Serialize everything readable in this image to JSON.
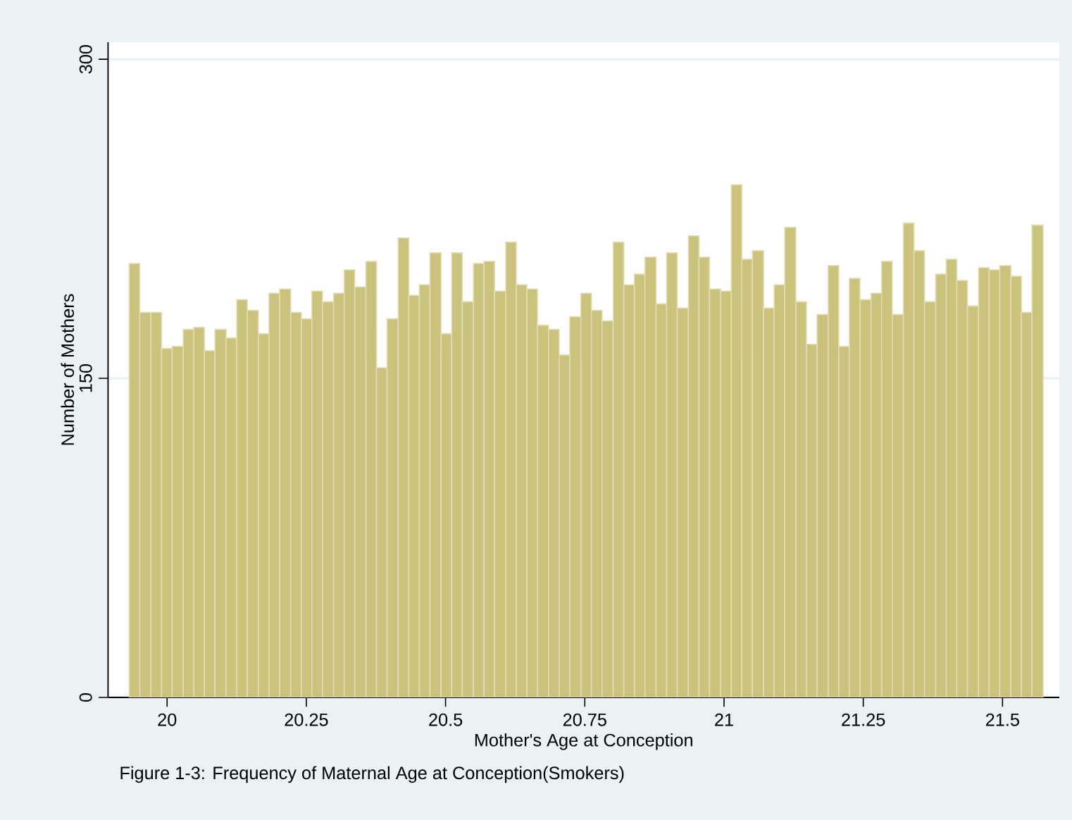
{
  "chart_data": {
    "type": "histogram",
    "xlabel": "Mother's Age at Conception",
    "ylabel": "Number of Mothers",
    "annotations": [
      "Figure 1-3: Frequency of Maternal Age at Conception(Smokers)"
    ],
    "bins": [
      19.932,
      19.951,
      19.971,
      19.99,
      20.009,
      20.029,
      20.048,
      20.067,
      20.086,
      20.106,
      20.125,
      20.144,
      20.164,
      20.183,
      20.202,
      20.222,
      20.241,
      20.26,
      20.279,
      20.299,
      20.318,
      20.337,
      20.357,
      20.376,
      20.395,
      20.415,
      20.434,
      20.453,
      20.472,
      20.492,
      20.511,
      20.53,
      20.55,
      20.569,
      20.588,
      20.608,
      20.627,
      20.646,
      20.665,
      20.685,
      20.704,
      20.723,
      20.743,
      20.762,
      20.781,
      20.801,
      20.82,
      20.839,
      20.858,
      20.878,
      20.897,
      20.916,
      20.936,
      20.955,
      20.974,
      20.994,
      21.013,
      21.032,
      21.051,
      21.071,
      21.09,
      21.109,
      21.129,
      21.148,
      21.167,
      21.187,
      21.206,
      21.225,
      21.244,
      21.264,
      21.283,
      21.302,
      21.322,
      21.341,
      21.36,
      21.38,
      21.399,
      21.418,
      21.437,
      21.457,
      21.476,
      21.495,
      21.515,
      21.534,
      21.553,
      21.573
    ],
    "values": [
      204,
      181,
      181,
      164,
      165,
      173,
      174,
      163,
      173,
      169,
      187,
      182,
      171,
      190,
      192,
      181,
      178,
      191,
      186,
      190,
      201,
      193,
      205,
      155,
      178,
      216,
      189,
      194,
      209,
      171,
      209,
      186,
      204,
      205,
      191,
      214,
      194,
      192,
      175,
      173,
      161,
      179,
      190,
      182,
      177,
      214,
      194,
      199,
      207,
      185,
      209,
      183,
      217,
      207,
      192,
      191,
      241,
      206,
      210,
      183,
      194,
      221,
      186,
      166,
      180,
      203,
      165,
      197,
      187,
      190,
      205,
      180,
      223,
      210,
      186,
      199,
      206,
      196,
      184,
      202,
      201,
      203,
      198,
      181,
      222
    ],
    "color": "#cbc27c",
    "xlim": [
      19.894,
      21.602
    ],
    "ylim": [
      0,
      308
    ],
    "xticks": [
      20,
      20.25,
      20.5,
      20.75,
      21,
      21.25,
      21.5
    ],
    "yticks": [
      0,
      150,
      300
    ],
    "grid": "y"
  }
}
